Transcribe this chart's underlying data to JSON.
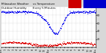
{
  "title": "Milwaukee Weather Outdoor Humidity vs Temperature Every 5 Minutes",
  "bg_color": "#d8d8d8",
  "plot_bg": "#ffffff",
  "blue_color": "#0000ee",
  "red_color": "#dd0000",
  "legend_blue": "#0000cc",
  "legend_red": "#cc0000",
  "ylim": [
    0,
    100
  ],
  "yticks": [
    20,
    40,
    60,
    80,
    100
  ],
  "ytick_labels": [
    "20",
    "40",
    "60",
    "80",
    "100"
  ],
  "xtick_labels": [
    "12a",
    "1",
    "2",
    "3",
    "4",
    "5",
    "6",
    "7",
    "8",
    "9",
    "10",
    "11",
    "12p",
    "1",
    "2",
    "3",
    "4",
    "5",
    "6",
    "7",
    "8",
    "9",
    "10",
    "11",
    "12a"
  ],
  "dot_size": 0.8,
  "title_fontsize": 3.0,
  "tick_fontsize": 2.5,
  "num_points": 288,
  "humidity_base": 85,
  "temp_base": 12,
  "seed": 42
}
